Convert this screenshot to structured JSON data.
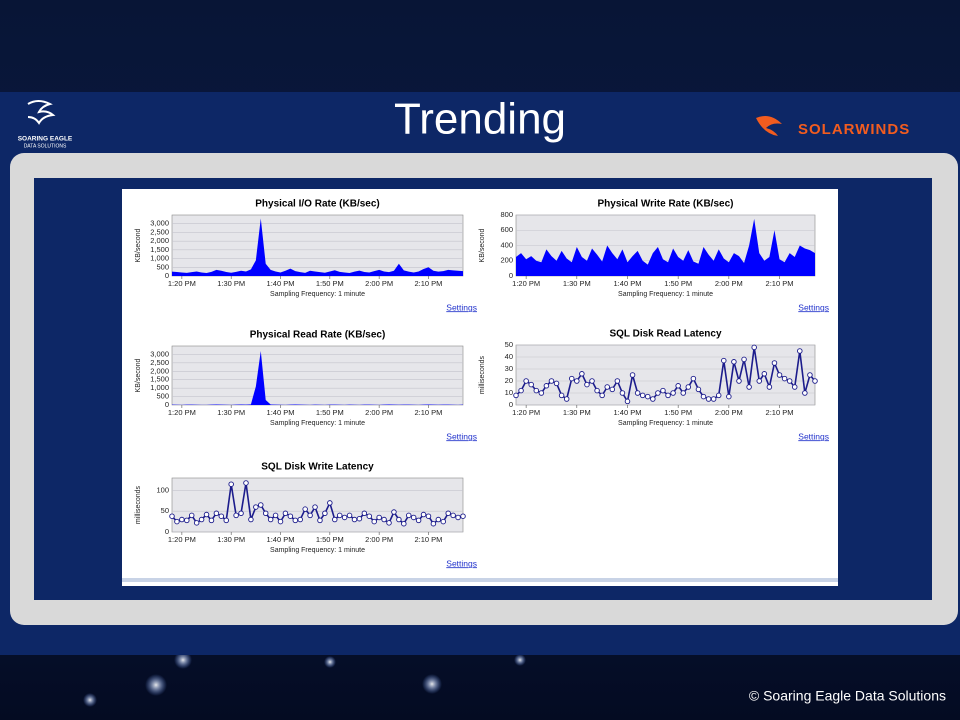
{
  "slide": {
    "title": "Trending",
    "logo_left": [
      "SOARING EAGLE",
      "DATA SOLUTIONS"
    ],
    "logo_right": "SOLARWINDS",
    "footer": "© Soaring Eagle Data Solutions"
  },
  "chart_data": [
    {
      "type": "area",
      "title": "Physical I/O Rate (KB/sec)",
      "ylabel": "KB/second",
      "xlabel": "Sampling Frequency: 1 minute",
      "link": "Settings",
      "color": "#0000ff",
      "grid": true,
      "x": [
        "1:18 PM",
        "1:19 PM",
        "1:20 PM",
        "1:21 PM",
        "1:22 PM",
        "1:23 PM",
        "1:24 PM",
        "1:25 PM",
        "1:26 PM",
        "1:27 PM",
        "1:28 PM",
        "1:29 PM",
        "1:30 PM",
        "1:31 PM",
        "1:32 PM",
        "1:33 PM",
        "1:34 PM",
        "1:35 PM",
        "1:36 PM",
        "1:37 PM",
        "1:38 PM",
        "1:39 PM",
        "1:40 PM",
        "1:41 PM",
        "1:42 PM",
        "1:43 PM",
        "1:44 PM",
        "1:45 PM",
        "1:46 PM",
        "1:47 PM",
        "1:48 PM",
        "1:49 PM",
        "1:50 PM",
        "1:51 PM",
        "1:52 PM",
        "1:53 PM",
        "1:54 PM",
        "1:55 PM",
        "1:56 PM",
        "1:57 PM",
        "1:58 PM",
        "1:59 PM",
        "2:00 PM",
        "2:01 PM",
        "2:02 PM",
        "2:03 PM",
        "2:04 PM",
        "2:05 PM",
        "2:06 PM",
        "2:07 PM",
        "2:08 PM",
        "2:09 PM",
        "2:10 PM",
        "2:11 PM",
        "2:12 PM",
        "2:13 PM",
        "2:14 PM",
        "2:15 PM",
        "2:16 PM",
        "2:17 PM"
      ],
      "values": [
        250,
        230,
        200,
        180,
        220,
        260,
        200,
        170,
        240,
        350,
        300,
        230,
        190,
        240,
        300,
        260,
        380,
        900,
        3300,
        700,
        350,
        260,
        200,
        300,
        420,
        280,
        220,
        180,
        300,
        260,
        220,
        190,
        260,
        330,
        240,
        200,
        170,
        250,
        310,
        230,
        200,
        280,
        350,
        260,
        220,
        300,
        700,
        320,
        250,
        200,
        260,
        400,
        500,
        300,
        250,
        280,
        350,
        320,
        300,
        280
      ],
      "xticks": [
        "1:20 PM",
        "1:30 PM",
        "1:40 PM",
        "1:50 PM",
        "2:00 PM",
        "2:10 PM"
      ],
      "ylim": [
        0,
        3500
      ],
      "yticks": [
        0,
        500,
        {
          "value": 1000,
          "label": "1,000"
        },
        {
          "value": 1500,
          "label": "1,500"
        },
        {
          "value": 2000,
          "label": "2,000"
        },
        {
          "value": 2500,
          "label": "2,500"
        },
        {
          "value": 3000,
          "label": "3,000"
        }
      ]
    },
    {
      "type": "area",
      "title": "Physical Write Rate (KB/sec)",
      "ylabel": "KB/second",
      "xlabel": "Sampling Frequency: 1 minute",
      "link": "Settings",
      "color": "#0000ff",
      "grid": true,
      "x": [
        "1:18 PM",
        "1:19 PM",
        "1:20 PM",
        "1:21 PM",
        "1:22 PM",
        "1:23 PM",
        "1:24 PM",
        "1:25 PM",
        "1:26 PM",
        "1:27 PM",
        "1:28 PM",
        "1:29 PM",
        "1:30 PM",
        "1:31 PM",
        "1:32 PM",
        "1:33 PM",
        "1:34 PM",
        "1:35 PM",
        "1:36 PM",
        "1:37 PM",
        "1:38 PM",
        "1:39 PM",
        "1:40 PM",
        "1:41 PM",
        "1:42 PM",
        "1:43 PM",
        "1:44 PM",
        "1:45 PM",
        "1:46 PM",
        "1:47 PM",
        "1:48 PM",
        "1:49 PM",
        "1:50 PM",
        "1:51 PM",
        "1:52 PM",
        "1:53 PM",
        "1:54 PM",
        "1:55 PM",
        "1:56 PM",
        "1:57 PM",
        "1:58 PM",
        "1:59 PM",
        "2:00 PM",
        "2:01 PM",
        "2:02 PM",
        "2:03 PM",
        "2:04 PM",
        "2:05 PM",
        "2:06 PM",
        "2:07 PM",
        "2:08 PM",
        "2:09 PM",
        "2:10 PM",
        "2:11 PM",
        "2:12 PM",
        "2:13 PM",
        "2:14 PM",
        "2:15 PM",
        "2:16 PM",
        "2:17 PM"
      ],
      "values": [
        250,
        300,
        220,
        260,
        200,
        180,
        350,
        260,
        200,
        330,
        230,
        180,
        380,
        250,
        200,
        360,
        280,
        190,
        400,
        300,
        220,
        350,
        180,
        260,
        330,
        200,
        150,
        300,
        380,
        220,
        180,
        360,
        250,
        200,
        340,
        190,
        160,
        380,
        280,
        200,
        350,
        230,
        180,
        300,
        260,
        170,
        400,
        750,
        300,
        200,
        250,
        600,
        220,
        180,
        300,
        250,
        400,
        360,
        340,
        300
      ],
      "xticks": [
        "1:20 PM",
        "1:30 PM",
        "1:40 PM",
        "1:50 PM",
        "2:00 PM",
        "2:10 PM"
      ],
      "ylim": [
        0,
        800
      ],
      "yticks": [
        0,
        200,
        400,
        600,
        800
      ]
    },
    {
      "type": "area",
      "title": "Physical Read Rate (KB/sec)",
      "ylabel": "KB/second",
      "xlabel": "Sampling Frequency: 1 minute",
      "link": "Settings",
      "color": "#0000ff",
      "grid": true,
      "x": [
        "1:18 PM",
        "1:19 PM",
        "1:20 PM",
        "1:21 PM",
        "1:22 PM",
        "1:23 PM",
        "1:24 PM",
        "1:25 PM",
        "1:26 PM",
        "1:27 PM",
        "1:28 PM",
        "1:29 PM",
        "1:30 PM",
        "1:31 PM",
        "1:32 PM",
        "1:33 PM",
        "1:34 PM",
        "1:35 PM",
        "1:36 PM",
        "1:37 PM",
        "1:38 PM",
        "1:39 PM",
        "1:40 PM",
        "1:41 PM",
        "1:42 PM",
        "1:43 PM",
        "1:44 PM",
        "1:45 PM",
        "1:46 PM",
        "1:47 PM",
        "1:48 PM",
        "1:49 PM",
        "1:50 PM",
        "1:51 PM",
        "1:52 PM",
        "1:53 PM",
        "1:54 PM",
        "1:55 PM",
        "1:56 PM",
        "1:57 PM",
        "1:58 PM",
        "1:59 PM",
        "2:00 PM",
        "2:01 PM",
        "2:02 PM",
        "2:03 PM",
        "2:04 PM",
        "2:05 PM",
        "2:06 PM",
        "2:07 PM",
        "2:08 PM",
        "2:09 PM",
        "2:10 PM",
        "2:11 PM",
        "2:12 PM",
        "2:13 PM",
        "2:14 PM",
        "2:15 PM",
        "2:16 PM",
        "2:17 PM"
      ],
      "values": [
        20,
        15,
        10,
        20,
        25,
        15,
        10,
        10,
        20,
        30,
        20,
        15,
        10,
        20,
        30,
        25,
        40,
        1100,
        3200,
        300,
        30,
        20,
        15,
        10,
        20,
        30,
        25,
        15,
        10,
        20,
        15,
        10,
        20,
        25,
        15,
        10,
        20,
        15,
        10,
        20,
        25,
        15,
        10,
        20,
        30,
        20,
        15,
        25,
        20,
        15,
        10,
        20,
        30,
        25,
        15,
        20,
        25,
        15,
        10,
        20
      ],
      "xticks": [
        "1:20 PM",
        "1:30 PM",
        "1:40 PM",
        "1:50 PM",
        "2:00 PM",
        "2:10 PM"
      ],
      "ylim": [
        0,
        3500
      ],
      "yticks": [
        0,
        500,
        {
          "value": 1000,
          "label": "1,000"
        },
        {
          "value": 1500,
          "label": "1,500"
        },
        {
          "value": 2000,
          "label": "2,000"
        },
        {
          "value": 2500,
          "label": "2,500"
        },
        {
          "value": 3000,
          "label": "3,000"
        }
      ]
    },
    {
      "type": "line",
      "title": "SQL Disk Read Latency",
      "ylabel": "milliseconds",
      "xlabel": "Sampling Frequency: 1 minute",
      "link": "Settings",
      "color": "#1c1c8c",
      "grid": true,
      "x": [
        "1:18 PM",
        "1:19 PM",
        "1:20 PM",
        "1:21 PM",
        "1:22 PM",
        "1:23 PM",
        "1:24 PM",
        "1:25 PM",
        "1:26 PM",
        "1:27 PM",
        "1:28 PM",
        "1:29 PM",
        "1:30 PM",
        "1:31 PM",
        "1:32 PM",
        "1:33 PM",
        "1:34 PM",
        "1:35 PM",
        "1:36 PM",
        "1:37 PM",
        "1:38 PM",
        "1:39 PM",
        "1:40 PM",
        "1:41 PM",
        "1:42 PM",
        "1:43 PM",
        "1:44 PM",
        "1:45 PM",
        "1:46 PM",
        "1:47 PM",
        "1:48 PM",
        "1:49 PM",
        "1:50 PM",
        "1:51 PM",
        "1:52 PM",
        "1:53 PM",
        "1:54 PM",
        "1:55 PM",
        "1:56 PM",
        "1:57 PM",
        "1:58 PM",
        "1:59 PM",
        "2:00 PM",
        "2:01 PM",
        "2:02 PM",
        "2:03 PM",
        "2:04 PM",
        "2:05 PM",
        "2:06 PM",
        "2:07 PM",
        "2:08 PM",
        "2:09 PM",
        "2:10 PM",
        "2:11 PM",
        "2:12 PM",
        "2:13 PM",
        "2:14 PM",
        "2:15 PM",
        "2:16 PM",
        "2:17 PM"
      ],
      "values": [
        8,
        12,
        20,
        17,
        12,
        10,
        16,
        20,
        18,
        8,
        5,
        22,
        20,
        26,
        17,
        20,
        12,
        8,
        15,
        13,
        20,
        10,
        3,
        25,
        10,
        8,
        7,
        5,
        10,
        12,
        8,
        10,
        16,
        10,
        15,
        22,
        13,
        7,
        5,
        5,
        8,
        37,
        7,
        36,
        20,
        38,
        15,
        48,
        20,
        26,
        15,
        35,
        25,
        22,
        20,
        15,
        45,
        10,
        25,
        20
      ],
      "xticks": [
        "1:20 PM",
        "1:30 PM",
        "1:40 PM",
        "1:50 PM",
        "2:00 PM",
        "2:10 PM"
      ],
      "ylim": [
        0,
        50
      ],
      "yticks": [
        0,
        10,
        20,
        30,
        40,
        50
      ]
    },
    {
      "type": "line",
      "title": "SQL Disk Write Latency",
      "ylabel": "milliseconds",
      "xlabel": "Sampling Frequency: 1 minute",
      "link": "Settings",
      "color": "#1c1c8c",
      "grid": true,
      "x": [
        "1:18 PM",
        "1:19 PM",
        "1:20 PM",
        "1:21 PM",
        "1:22 PM",
        "1:23 PM",
        "1:24 PM",
        "1:25 PM",
        "1:26 PM",
        "1:27 PM",
        "1:28 PM",
        "1:29 PM",
        "1:30 PM",
        "1:31 PM",
        "1:32 PM",
        "1:33 PM",
        "1:34 PM",
        "1:35 PM",
        "1:36 PM",
        "1:37 PM",
        "1:38 PM",
        "1:39 PM",
        "1:40 PM",
        "1:41 PM",
        "1:42 PM",
        "1:43 PM",
        "1:44 PM",
        "1:45 PM",
        "1:46 PM",
        "1:47 PM",
        "1:48 PM",
        "1:49 PM",
        "1:50 PM",
        "1:51 PM",
        "1:52 PM",
        "1:53 PM",
        "1:54 PM",
        "1:55 PM",
        "1:56 PM",
        "1:57 PM",
        "1:58 PM",
        "1:59 PM",
        "2:00 PM",
        "2:01 PM",
        "2:02 PM",
        "2:03 PM",
        "2:04 PM",
        "2:05 PM",
        "2:06 PM",
        "2:07 PM",
        "2:08 PM",
        "2:09 PM",
        "2:10 PM",
        "2:11 PM",
        "2:12 PM",
        "2:13 PM",
        "2:14 PM",
        "2:15 PM",
        "2:16 PM",
        "2:17 PM"
      ],
      "values": [
        38,
        25,
        30,
        28,
        40,
        22,
        30,
        42,
        28,
        45,
        38,
        28,
        115,
        40,
        45,
        118,
        30,
        60,
        65,
        45,
        30,
        40,
        25,
        45,
        38,
        28,
        30,
        55,
        40,
        60,
        28,
        45,
        70,
        30,
        40,
        35,
        40,
        30,
        32,
        45,
        38,
        25,
        35,
        30,
        22,
        48,
        30,
        20,
        40,
        35,
        28,
        42,
        38,
        20,
        30,
        25,
        45,
        40,
        35,
        38
      ],
      "xticks": [
        "1:20 PM",
        "1:30 PM",
        "1:40 PM",
        "1:50 PM",
        "2:00 PM",
        "2:10 PM"
      ],
      "ylim": [
        0,
        130
      ],
      "yticks": [
        0,
        50,
        100
      ]
    }
  ]
}
